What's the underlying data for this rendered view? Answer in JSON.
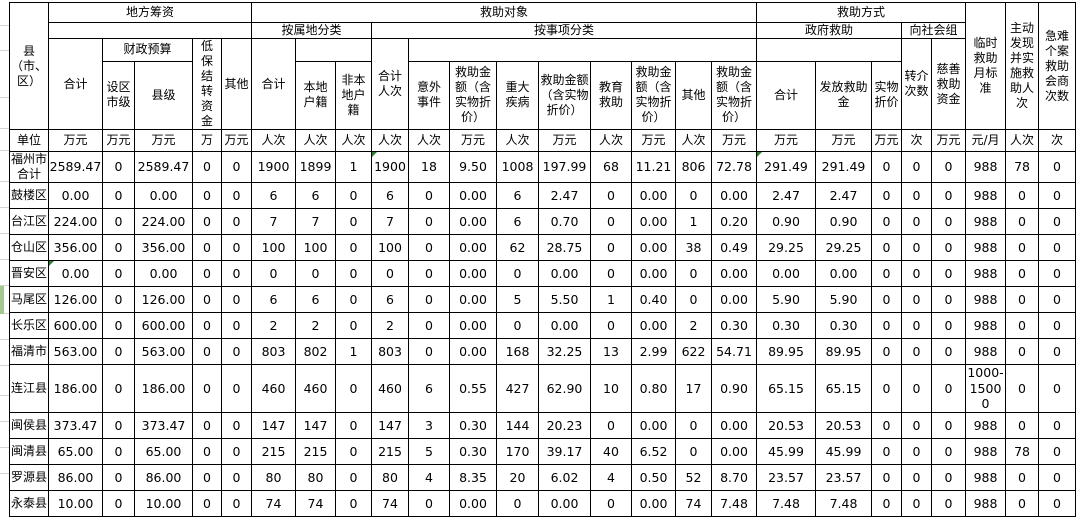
{
  "table": {
    "corner_label": "县（市、区）",
    "unit_row_label": "单位",
    "header": {
      "local_funding": {
        "title": "地方筹资",
        "total": "合计",
        "fiscal_budget": "财政预算",
        "city_level": "设区市级",
        "county_level": "县级",
        "dibao_carryover": "低保结转资金",
        "other": "其他"
      },
      "recipients": {
        "title": "救助对象",
        "by_territory": {
          "title": "按属地分类",
          "total": "合计",
          "local_hukou": "本地户籍",
          "nonlocal_hukou": "非本地户籍"
        },
        "by_matter": {
          "title": "按事项分类",
          "total": "合计人次",
          "accident": "意外事件",
          "relief_amount": "救助金额（含实物折价）",
          "major_illness": "重大疾病",
          "education": "教育救助",
          "other": "其他"
        }
      },
      "method": {
        "title": "救助方式",
        "government": {
          "title": "政府救助",
          "total": "合计",
          "grant": "发放救助金",
          "in_kind": "实物折价"
        },
        "social_org": {
          "title": "向社会组",
          "referral_count": "转介次数",
          "charity_fund": "慈善救助资金"
        }
      },
      "temp_relief_standard": "临时救助月标准",
      "proactive_relief": "主动发现并实施救助人次",
      "urgent_case_consult": "急难个案救助会商次数"
    },
    "units": [
      "万元",
      "万元",
      "万元",
      "万",
      "万元",
      "人次",
      "人次",
      "人次",
      "人次",
      "人次",
      "万元",
      "人次",
      "万元",
      "人次",
      "万元",
      "人次",
      "万元",
      "万元",
      "万元",
      "万元",
      "次",
      "万元",
      "元/月",
      "人次",
      "次"
    ],
    "rows": [
      {
        "name": "福州市合计",
        "values": [
          "2589.47",
          "0",
          "2589.47",
          "0",
          "0",
          "1900",
          "1899",
          "1",
          "1900",
          "18",
          "9.50",
          "1008",
          "197.99",
          "68",
          "11.21",
          "806",
          "72.78",
          "291.49",
          "291.49",
          "0",
          "0",
          "0",
          "988",
          "78",
          "0"
        ]
      },
      {
        "name": "鼓楼区",
        "values": [
          "0.00",
          "0",
          "0.00",
          "0",
          "0",
          "6",
          "6",
          "0",
          "6",
          "0",
          "0.00",
          "6",
          "2.47",
          "0",
          "0.00",
          "0",
          "0.00",
          "2.47",
          "2.47",
          "0",
          "0",
          "0",
          "988",
          "0",
          "0"
        ]
      },
      {
        "name": "台江区",
        "values": [
          "224.00",
          "0",
          "224.00",
          "0",
          "0",
          "7",
          "7",
          "0",
          "7",
          "0",
          "0.00",
          "6",
          "0.70",
          "0",
          "0.00",
          "1",
          "0.20",
          "0.90",
          "0.90",
          "0",
          "0",
          "0",
          "988",
          "0",
          "0"
        ]
      },
      {
        "name": "仓山区",
        "values": [
          "356.00",
          "0",
          "356.00",
          "0",
          "0",
          "100",
          "100",
          "0",
          "100",
          "0",
          "0.00",
          "62",
          "28.75",
          "0",
          "0.00",
          "38",
          "0.49",
          "29.25",
          "29.25",
          "0",
          "0",
          "0",
          "988",
          "0",
          "0"
        ]
      },
      {
        "name": "晋安区",
        "values": [
          "0.00",
          "0",
          "0.00",
          "0",
          "0",
          "0",
          "0",
          "0",
          "0",
          "0",
          "0.00",
          "0",
          "0.00",
          "0",
          "0.00",
          "0",
          "0.00",
          "0.00",
          "0.00",
          "0",
          "0",
          "0",
          "988",
          "0",
          "0"
        ]
      },
      {
        "name": "马尾区",
        "values": [
          "126.00",
          "0",
          "126.00",
          "0",
          "0",
          "6",
          "6",
          "0",
          "6",
          "0",
          "0.00",
          "5",
          "5.50",
          "1",
          "0.40",
          "0",
          "0.00",
          "5.90",
          "5.90",
          "0",
          "0",
          "0",
          "988",
          "0",
          "0"
        ]
      },
      {
        "name": "长乐区",
        "values": [
          "600.00",
          "0",
          "600.00",
          "0",
          "0",
          "2",
          "2",
          "0",
          "2",
          "0",
          "0.00",
          "0",
          "0.00",
          "0",
          "0.00",
          "2",
          "0.30",
          "0.30",
          "0.30",
          "0",
          "0",
          "0",
          "988",
          "0",
          "0"
        ]
      },
      {
        "name": "福清市",
        "values": [
          "563.00",
          "0",
          "563.00",
          "0",
          "0",
          "803",
          "802",
          "1",
          "803",
          "0",
          "0.00",
          "168",
          "32.25",
          "13",
          "2.99",
          "622",
          "54.71",
          "89.95",
          "89.95",
          "0",
          "0",
          "0",
          "988",
          "0",
          "0"
        ]
      },
      {
        "name": "连江县",
        "values": [
          "186.00",
          "0",
          "186.00",
          "0",
          "0",
          "460",
          "460",
          "0",
          "460",
          "6",
          "0.55",
          "427",
          "62.90",
          "10",
          "0.80",
          "17",
          "0.90",
          "65.15",
          "65.15",
          "0",
          "0",
          "0",
          "1000-15000",
          "0",
          "0"
        ]
      },
      {
        "name": "闽侯县",
        "values": [
          "373.47",
          "0",
          "373.47",
          "0",
          "0",
          "147",
          "147",
          "0",
          "147",
          "3",
          "0.30",
          "144",
          "20.23",
          "0",
          "0.00",
          "0",
          "0.00",
          "20.53",
          "20.53",
          "0",
          "0",
          "0",
          "988",
          "0",
          "0"
        ]
      },
      {
        "name": "闽清县",
        "values": [
          "65.00",
          "0",
          "65.00",
          "0",
          "0",
          "215",
          "215",
          "0",
          "215",
          "5",
          "0.30",
          "170",
          "39.17",
          "40",
          "6.52",
          "0",
          "0.00",
          "45.99",
          "45.99",
          "0",
          "0",
          "0",
          "988",
          "78",
          "0"
        ]
      },
      {
        "name": "罗源县",
        "values": [
          "86.00",
          "0",
          "86.00",
          "0",
          "0",
          "80",
          "80",
          "0",
          "80",
          "4",
          "8.35",
          "20",
          "6.02",
          "4",
          "0.50",
          "52",
          "8.70",
          "23.57",
          "23.57",
          "0",
          "0",
          "0",
          "988",
          "0",
          "0"
        ]
      },
      {
        "name": "永泰县",
        "values": [
          "10.00",
          "0",
          "10.00",
          "0",
          "0",
          "74",
          "74",
          "0",
          "74",
          "0",
          "0.00",
          "0",
          "0.00",
          "0",
          "0.00",
          "74",
          "7.48",
          "7.48",
          "7.48",
          "0",
          "0",
          "0",
          "988",
          "0",
          "0"
        ]
      }
    ],
    "error_flags": [
      {
        "row": 0,
        "col": 8
      },
      {
        "row": 0,
        "col": 17
      },
      {
        "row": 4,
        "col": 0
      }
    ],
    "colors": {
      "grid": "#000000",
      "error_flag_green": "#2e7d32",
      "gutter_line": "#d4d4d4",
      "row_highlight_green": "#a3c78e"
    }
  }
}
